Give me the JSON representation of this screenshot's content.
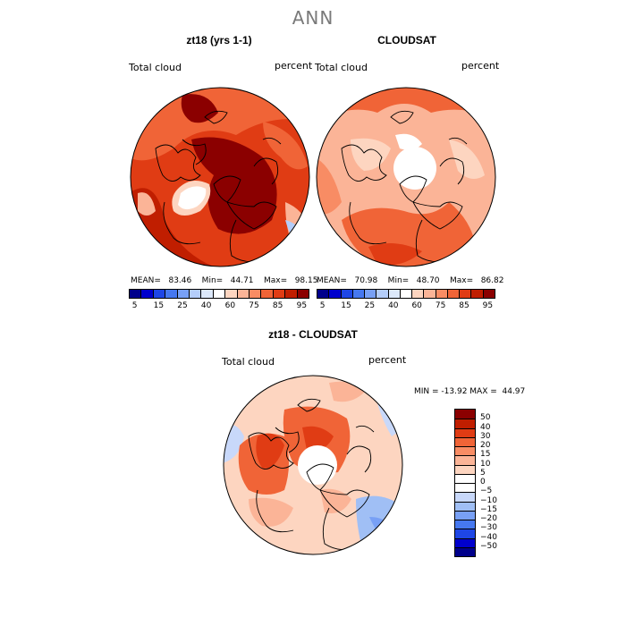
{
  "figure": {
    "title": "ANN"
  },
  "panels": [
    {
      "title": "zt18 (yrs 1-1)",
      "field_label": "Total cloud",
      "units": "percent",
      "stats": {
        "mean": "83.46",
        "min": "44.71",
        "max": "98.15"
      },
      "stats_text": "MEAN=   83.46    Min=   44.71    Max=   98.15"
    },
    {
      "title": "CLOUDSAT",
      "field_label": "Total cloud",
      "units": "percent",
      "stats": {
        "mean": "70.98",
        "min": "48.70",
        "max": "86.82"
      },
      "stats_text": "MEAN=   70.98    Min=   48.70    Max=   86.82"
    },
    {
      "title": "zt18 - CLOUDSAT",
      "field_label": "Total cloud",
      "units": "percent",
      "stats": {
        "min": "-13.92",
        "max": "44.97"
      },
      "stats_text": "MIN = -13.92 MAX =  44.97"
    }
  ],
  "colorbar_abs": {
    "tick_labels": [
      "5",
      "15",
      "25",
      "40",
      "60",
      "75",
      "85",
      "95"
    ],
    "colors": [
      "#00008b",
      "#0000cd",
      "#1e46e6",
      "#4678f0",
      "#78a0f5",
      "#b4cdfa",
      "#dce8fa",
      "#ffffff",
      "#fdd5c0",
      "#fbb497",
      "#f88c64",
      "#f06437",
      "#e03c14",
      "#c01e00",
      "#8b0000"
    ]
  },
  "colorbar_diff": {
    "tick_labels": [
      "50",
      "40",
      "30",
      "20",
      "15",
      "10",
      "5",
      "0",
      "−5",
      "−10",
      "−15",
      "−20",
      "−30",
      "−40",
      "−50"
    ],
    "colors": [
      "#8b0000",
      "#c01e00",
      "#e03c14",
      "#f06437",
      "#f88c64",
      "#fbb497",
      "#fdd5c0",
      "#ffffff",
      "#ffffff",
      "#c8d8fa",
      "#a0bff5",
      "#78a0f5",
      "#4678f0",
      "#1e46e6",
      "#0000cd",
      "#00008b"
    ]
  },
  "colors": {
    "land_outline": "#000000",
    "missing": "#ffffff",
    "title_gray": "#7a7a7a"
  }
}
